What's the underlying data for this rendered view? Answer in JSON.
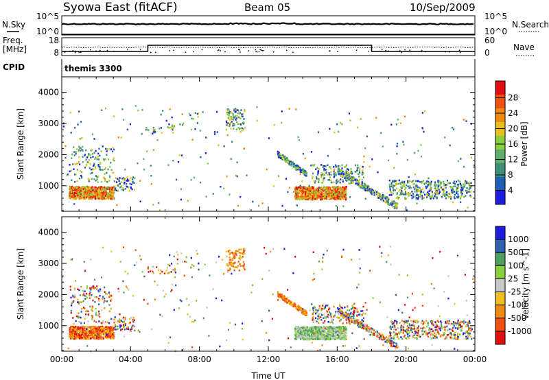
{
  "header": {
    "station": "Syowa East (fitACF)",
    "beam": "Beam 05",
    "date": "10/Sep/2009"
  },
  "nsky_panel": {
    "left_label": "N.Sky",
    "right_label": "N.Search",
    "tick_top": "10^5",
    "tick_bottom": "10^0"
  },
  "freq_panel": {
    "left_label_1": "Freq.",
    "left_label_2": "[MHz]",
    "right_label": "Nave",
    "freq_ticks": [
      "18",
      "8"
    ],
    "nave_ticks": [
      "60",
      "0"
    ]
  },
  "cpid": {
    "label": "CPID",
    "program": "themis 3300"
  },
  "colors": {
    "power_scale": [
      "#1e1ee0",
      "#205fb8",
      "#3f8f7a",
      "#5fb06a",
      "#8ad040",
      "#e8c020",
      "#f08a10",
      "#f05010",
      "#e01010"
    ],
    "velocity_scale": [
      "#e01010",
      "#f05010",
      "#f08a10",
      "#f0c020",
      "#c8c8c8",
      "#8ad040",
      "#4fa060",
      "#3060b0",
      "#1e1ee0"
    ]
  },
  "chart_data": [
    {
      "type": "heatmap",
      "title": "",
      "xlabel": "",
      "ylabel": "Slant Range [km]",
      "xlim": [
        "00:00",
        "00:00"
      ],
      "ylim": [
        180,
        4500
      ],
      "x_ticks": [
        "00:00",
        "04:00",
        "08:00",
        "12:00",
        "16:00",
        "20:00",
        "00:00"
      ],
      "y_ticks": [
        "1000",
        "2000",
        "3000",
        "4000"
      ],
      "colorbar": {
        "label": "Power [dB]",
        "ticks": [
          "28",
          "24",
          "20",
          "16",
          "12",
          "8",
          "4"
        ],
        "range": [
          0,
          30
        ]
      },
      "features": [
        {
          "time_range": [
            "00:30",
            "03:00"
          ],
          "range_km": [
            600,
            1000
          ],
          "value": "high"
        },
        {
          "time_range": [
            "12:30",
            "16:30"
          ],
          "range_km": [
            500,
            2000
          ],
          "value": "high"
        },
        {
          "time_range": [
            "14:00",
            "17:00"
          ],
          "range_km": [
            600,
            800
          ],
          "value": "peak"
        },
        {
          "time_range": [
            "09:30",
            "10:30"
          ],
          "range_km": [
            2800,
            3400
          ],
          "value": "medium"
        }
      ]
    },
    {
      "type": "heatmap",
      "title": "",
      "xlabel": "Time UT",
      "ylabel": "Slant Range [km]",
      "xlim": [
        "00:00",
        "00:00"
      ],
      "ylim": [
        180,
        4500
      ],
      "x_ticks": [
        "00:00",
        "04:00",
        "08:00",
        "12:00",
        "16:00",
        "20:00",
        "00:00"
      ],
      "y_ticks": [
        "1000",
        "2000",
        "3000",
        "4000"
      ],
      "colorbar": {
        "label": "Velocity [m s^-1]",
        "ticks": [
          "1000",
          "500",
          "100",
          "25",
          "-25",
          "-100",
          "-500",
          "-1000"
        ],
        "range": [
          -1000,
          1000
        ]
      },
      "features": [
        {
          "time_range": [
            "00:30",
            "03:00"
          ],
          "range_km": [
            600,
            900
          ],
          "value": "negative"
        },
        {
          "time_range": [
            "13:00",
            "17:00"
          ],
          "range_km": [
            600,
            900
          ],
          "value": "positive"
        },
        {
          "time_range": [
            "12:30",
            "14:00"
          ],
          "range_km": [
            1500,
            2000
          ],
          "value": "negative"
        }
      ]
    }
  ]
}
